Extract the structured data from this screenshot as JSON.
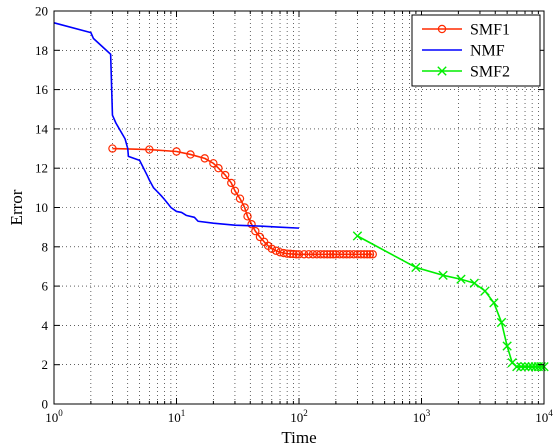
{
  "chart_data": {
    "type": "line",
    "title": "",
    "xlabel": "Time",
    "ylabel": "Error",
    "x_scale": "log",
    "xlim": [
      1,
      10000
    ],
    "ylim": [
      0,
      20
    ],
    "grid": true,
    "legend_position": "top-right",
    "x_ticks": [
      1,
      10,
      100,
      1000,
      10000
    ],
    "x_tick_labels": [
      {
        "base": "10",
        "exp": "0"
      },
      {
        "base": "10",
        "exp": "1"
      },
      {
        "base": "10",
        "exp": "2"
      },
      {
        "base": "10",
        "exp": "3"
      },
      {
        "base": "10",
        "exp": "4"
      }
    ],
    "y_ticks": [
      0,
      2,
      4,
      6,
      8,
      10,
      12,
      14,
      16,
      18,
      20
    ],
    "y_tick_labels": [
      "0",
      "2",
      "4",
      "6",
      "8",
      "10",
      "12",
      "14",
      "16",
      "18",
      "20"
    ],
    "series": [
      {
        "name": "SMF1",
        "color": "#ff2a00",
        "marker": "circle",
        "x": [
          3,
          6,
          10,
          13,
          17,
          20,
          22,
          25,
          28,
          30,
          33,
          36,
          38,
          41,
          44,
          48,
          52,
          56,
          60,
          65,
          70,
          75,
          80,
          85,
          90,
          95,
          100,
          110,
          120,
          130,
          140,
          150,
          160,
          170,
          180,
          190,
          200,
          215,
          230,
          245,
          260,
          280,
          300,
          320,
          340,
          360,
          380,
          400
        ],
        "y": [
          13.0,
          12.95,
          12.85,
          12.7,
          12.5,
          12.25,
          12.0,
          11.65,
          11.25,
          10.85,
          10.45,
          10.0,
          9.55,
          9.15,
          8.8,
          8.5,
          8.25,
          8.05,
          7.9,
          7.8,
          7.72,
          7.68,
          7.65,
          7.64,
          7.63,
          7.62,
          7.62,
          7.62,
          7.62,
          7.62,
          7.62,
          7.62,
          7.62,
          7.62,
          7.62,
          7.62,
          7.62,
          7.62,
          7.62,
          7.62,
          7.62,
          7.62,
          7.62,
          7.62,
          7.62,
          7.62,
          7.62,
          7.62
        ]
      },
      {
        "name": "NMF",
        "color": "#0000ff",
        "marker": "none",
        "x": [
          1,
          2,
          2.1,
          2.9,
          3,
          3.2,
          3.8,
          4,
          4.05,
          5,
          5.8,
          6,
          6.5,
          7,
          7.5,
          8,
          8.5,
          9,
          10,
          11,
          12,
          14,
          15,
          20,
          30,
          50,
          70,
          100
        ],
        "y": [
          19.4,
          18.9,
          18.6,
          17.8,
          14.7,
          14.3,
          13.5,
          13.0,
          12.6,
          12.4,
          11.6,
          11.4,
          11.0,
          10.8,
          10.6,
          10.4,
          10.2,
          10.0,
          9.8,
          9.75,
          9.6,
          9.5,
          9.3,
          9.2,
          9.1,
          9.05,
          9.0,
          8.95
        ]
      },
      {
        "name": "SMF2",
        "color": "#00ee00",
        "marker": "cross",
        "x": [
          300,
          900,
          1500,
          2100,
          2700,
          3300,
          3900,
          4500,
          5000,
          5500,
          6000,
          6500,
          7000,
          7500,
          8000,
          8500,
          9000,
          9500,
          10000
        ],
        "y": [
          8.55,
          6.95,
          6.55,
          6.35,
          6.15,
          5.75,
          5.15,
          4.15,
          2.95,
          2.1,
          1.9,
          1.9,
          1.9,
          1.9,
          1.9,
          1.9,
          1.9,
          1.9,
          1.9
        ]
      }
    ]
  }
}
